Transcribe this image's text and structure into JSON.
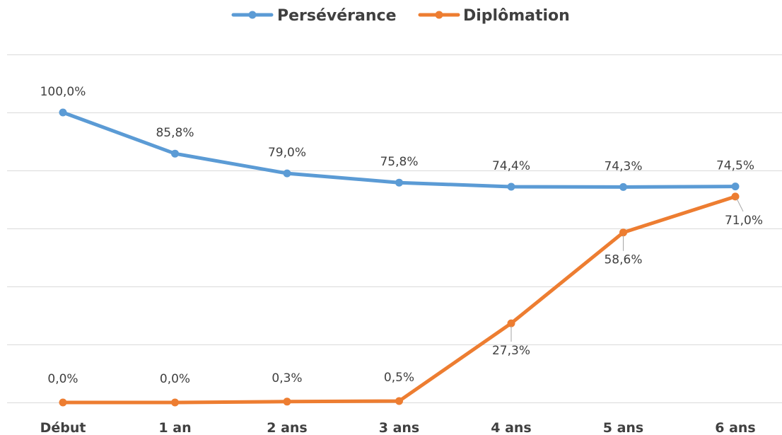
{
  "chart_data": {
    "type": "line",
    "categories": [
      "Début",
      "1 an",
      "2 ans",
      "3 ans",
      "4 ans",
      "5 ans",
      "6 ans"
    ],
    "series": [
      {
        "name": "Persévérance",
        "color": "#5b9bd5",
        "values": [
          100.0,
          85.8,
          79.0,
          75.8,
          74.4,
          74.3,
          74.5
        ],
        "labels": [
          "100,0%",
          "85,8%",
          "79,0%",
          "75,8%",
          "74,4%",
          "74,3%",
          "74,5%"
        ]
      },
      {
        "name": "Diplômation",
        "color": "#ed7d31",
        "values": [
          0.0,
          0.0,
          0.3,
          0.5,
          27.3,
          58.6,
          71.0
        ],
        "labels": [
          "0,0%",
          "0,0%",
          "0,3%",
          "0,5%",
          "27,3%",
          "58,6%",
          "71,0%"
        ]
      }
    ],
    "ylim": [
      0,
      120
    ],
    "grid": true,
    "legend_position": "top"
  }
}
